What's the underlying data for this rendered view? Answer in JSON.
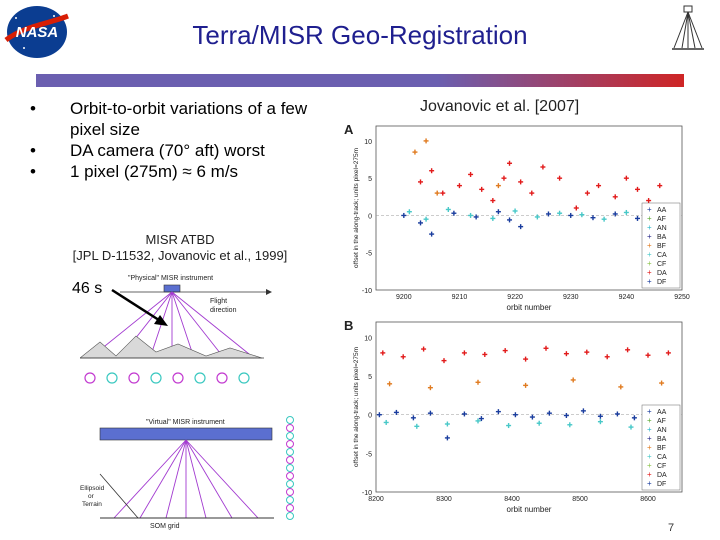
{
  "slide": {
    "title": "Terra/MISR Geo-Registration",
    "bullets": [
      "Orbit-to-orbit variations of a few pixel size",
      "DA camera (70° aft) worst",
      "1 pixel (275m) ≈ 6 m/s"
    ],
    "bullet_marker": "•",
    "reference_caption_line1": "MISR ATBD",
    "reference_caption_line2": "[JPL D-11532, Jovanovic et al., 1999]",
    "time_label": "46 s",
    "figure_citation": "Jovanovic et al. [2007]",
    "page_number": "7",
    "accent_color": "#1f1f8f",
    "rule_colors": [
      "#6b5fb0",
      "#cf2525"
    ]
  },
  "icons": {
    "agency_logo": "nasa-logo",
    "agency_logo_text": "NASA",
    "corner_emblem": "misr-emblem",
    "pointer": "arrow-icon"
  },
  "diagram": {
    "physical_label": "\"Physical\" MISR instrument",
    "flight_label_line1": "Flight",
    "flight_label_line2": "direction",
    "virtual_label": "\"Virtual\" MISR instrument",
    "ellipsoid_label_line1": "Ellipsoid",
    "ellipsoid_label_line2": "or",
    "ellipsoid_label_line3": "Terrain",
    "som_label": "SOM grid"
  },
  "chart_data": [
    {
      "type": "scatter",
      "panel": "A",
      "xlabel": "orbit number",
      "ylabel": "offset in the along-track; units pixel=275m",
      "xlim": [
        9195,
        9250
      ],
      "ylim": [
        -10,
        12
      ],
      "xticks": [
        9200,
        9210,
        9220,
        9230,
        9240,
        9250
      ],
      "yticks": [
        10,
        5,
        0,
        -5,
        -10
      ],
      "legend": [
        "AA",
        "AF",
        "AN",
        "BA",
        "BF",
        "CA",
        "CF",
        "DA",
        "DF"
      ],
      "legend_colors": [
        "#1a3d9e",
        "#5aa832",
        "#2bb6c9",
        "#2a2a8a",
        "#e07b20",
        "#48c8c8",
        "#8bc34a",
        "#e21b1b",
        "#1a3d9e"
      ],
      "legend_position": "bottom-right",
      "series": [
        {
          "name": "DA",
          "color": "#e21b1b",
          "x": [
            9203,
            9205,
            9207,
            9210,
            9212,
            9214,
            9216,
            9218,
            9219,
            9221,
            9223,
            9225,
            9228,
            9231,
            9233,
            9235,
            9238,
            9240,
            9242,
            9244,
            9246
          ],
          "y": [
            4.5,
            6,
            3,
            4,
            5.5,
            3.5,
            2,
            5,
            7,
            4.5,
            3,
            6.5,
            5,
            1,
            3,
            4,
            2.5,
            5,
            3.5,
            2,
            4
          ]
        },
        {
          "name": "BF",
          "color": "#e07b20",
          "x": [
            9202,
            9204,
            9206,
            9217
          ],
          "y": [
            8.5,
            10,
            3,
            4
          ]
        },
        {
          "name": "CA",
          "color": "#48c8c8",
          "x": [
            9201,
            9204,
            9208,
            9212,
            9216,
            9220,
            9224,
            9228,
            9232,
            9236,
            9240,
            9244
          ],
          "y": [
            0.5,
            -0.5,
            0.8,
            0,
            -0.4,
            0.6,
            -0.2,
            0.3,
            0.1,
            -0.5,
            0.4,
            0
          ]
        },
        {
          "name": "AA",
          "color": "#1a3d9e",
          "x": [
            9200,
            9203,
            9205,
            9209,
            9213,
            9217,
            9219,
            9221,
            9226,
            9230,
            9234,
            9238,
            9242,
            9245
          ],
          "y": [
            0,
            -1,
            -2.5,
            0.3,
            -0.2,
            0.5,
            -0.6,
            -1.5,
            0.2,
            0,
            -0.3,
            0.2,
            -0.4,
            0.1
          ]
        }
      ]
    },
    {
      "type": "scatter",
      "panel": "B",
      "xlabel": "orbit number",
      "ylabel": "offset in the along-track; units pixel=275m",
      "xlim": [
        8200,
        8650
      ],
      "ylim": [
        -10,
        12
      ],
      "xticks": [
        8200,
        8300,
        8400,
        8500,
        8600
      ],
      "yticks": [
        10,
        5,
        0,
        -5,
        -10
      ],
      "legend": [
        "AA",
        "AF",
        "AN",
        "BA",
        "BF",
        "CA",
        "CF",
        "DA",
        "DF"
      ],
      "legend_colors": [
        "#1a3d9e",
        "#5aa832",
        "#2bb6c9",
        "#2a2a8a",
        "#e07b20",
        "#48c8c8",
        "#8bc34a",
        "#e21b1b",
        "#1a3d9e"
      ],
      "legend_position": "bottom-right",
      "series": [
        {
          "name": "DA",
          "color": "#e21b1b",
          "x": [
            8210,
            8240,
            8270,
            8300,
            8330,
            8360,
            8390,
            8420,
            8450,
            8480,
            8510,
            8540,
            8570,
            8600,
            8630
          ],
          "y": [
            8,
            7.5,
            8.5,
            7,
            8,
            7.8,
            8.3,
            7.2,
            8.6,
            7.9,
            8.1,
            7.5,
            8.4,
            7.7,
            8
          ]
        },
        {
          "name": "BF",
          "color": "#e07b20",
          "x": [
            8220,
            8280,
            8350,
            8420,
            8490,
            8560,
            8620
          ],
          "y": [
            4,
            3.5,
            4.2,
            3.8,
            4.5,
            3.6,
            4.1
          ]
        },
        {
          "name": "CA",
          "color": "#48c8c8",
          "x": [
            8215,
            8260,
            8305,
            8350,
            8395,
            8440,
            8485,
            8530,
            8575,
            8620
          ],
          "y": [
            -1,
            -1.5,
            -1.2,
            -0.8,
            -1.4,
            -1.1,
            -1.3,
            -0.9,
            -1.6,
            -1.2
          ]
        },
        {
          "name": "AA",
          "color": "#1a3d9e",
          "x": [
            8205,
            8230,
            8255,
            8280,
            8305,
            8330,
            8355,
            8380,
            8405,
            8430,
            8455,
            8480,
            8505,
            8530,
            8555,
            8580,
            8605,
            8630
          ],
          "y": [
            0,
            0.3,
            -0.4,
            0.2,
            -3,
            0.1,
            -0.5,
            0.4,
            0,
            -0.3,
            0.2,
            -0.1,
            0.5,
            -0.2,
            0.1,
            -0.4,
            0.3,
            0
          ]
        }
      ]
    }
  ]
}
